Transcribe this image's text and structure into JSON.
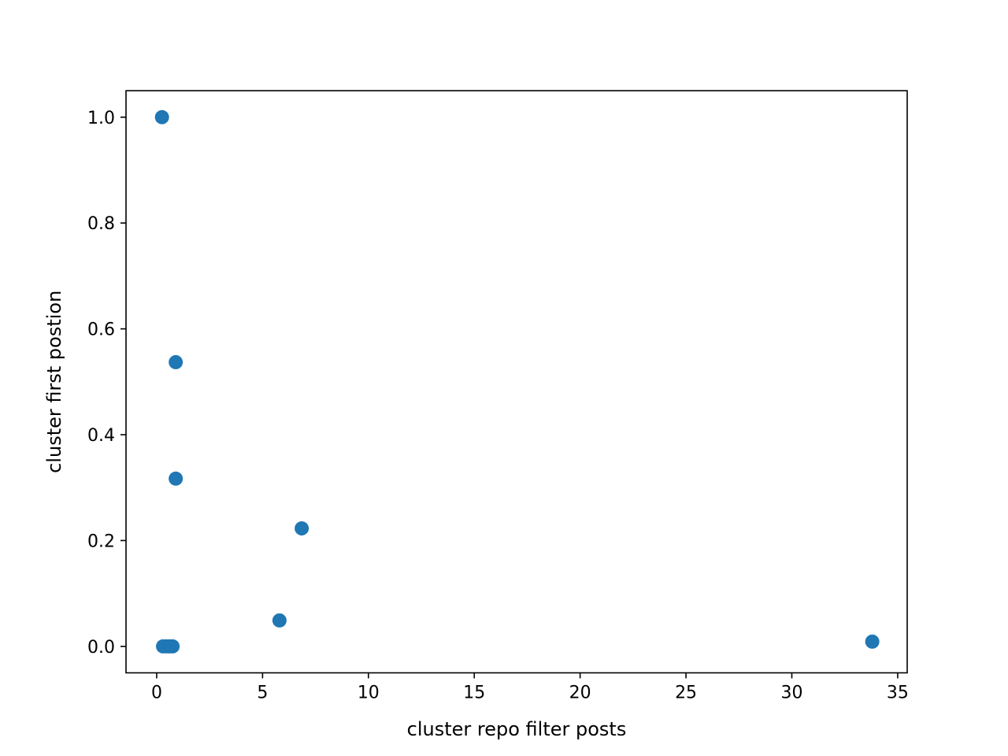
{
  "chart_data": {
    "type": "scatter",
    "title": "",
    "xlabel": "cluster repo filter posts",
    "ylabel": "cluster first postion",
    "xlim": [
      -1.45,
      35.45
    ],
    "ylim": [
      -0.05,
      1.05
    ],
    "xticks": [
      0,
      5,
      10,
      15,
      20,
      25,
      30,
      35
    ],
    "yticks": [
      0.0,
      0.2,
      0.4,
      0.6,
      0.8,
      1.0
    ],
    "xtick_labels": [
      "0",
      "5",
      "10",
      "15",
      "20",
      "25",
      "30",
      "35"
    ],
    "ytick_labels": [
      "0.0",
      "0.2",
      "0.4",
      "0.6",
      "0.8",
      "1.0"
    ],
    "grid": false,
    "marker_color": "#1f77b4",
    "points": [
      {
        "x": 0.25,
        "y": 1.0
      },
      {
        "x": 0.9,
        "y": 0.537
      },
      {
        "x": 0.9,
        "y": 0.317
      },
      {
        "x": 6.85,
        "y": 0.223
      },
      {
        "x": 5.8,
        "y": 0.049
      },
      {
        "x": 33.8,
        "y": 0.009
      },
      {
        "x": 0.3,
        "y": 0.0
      },
      {
        "x": 0.45,
        "y": 0.0
      },
      {
        "x": 0.6,
        "y": 0.0
      },
      {
        "x": 0.75,
        "y": 0.0
      }
    ]
  }
}
